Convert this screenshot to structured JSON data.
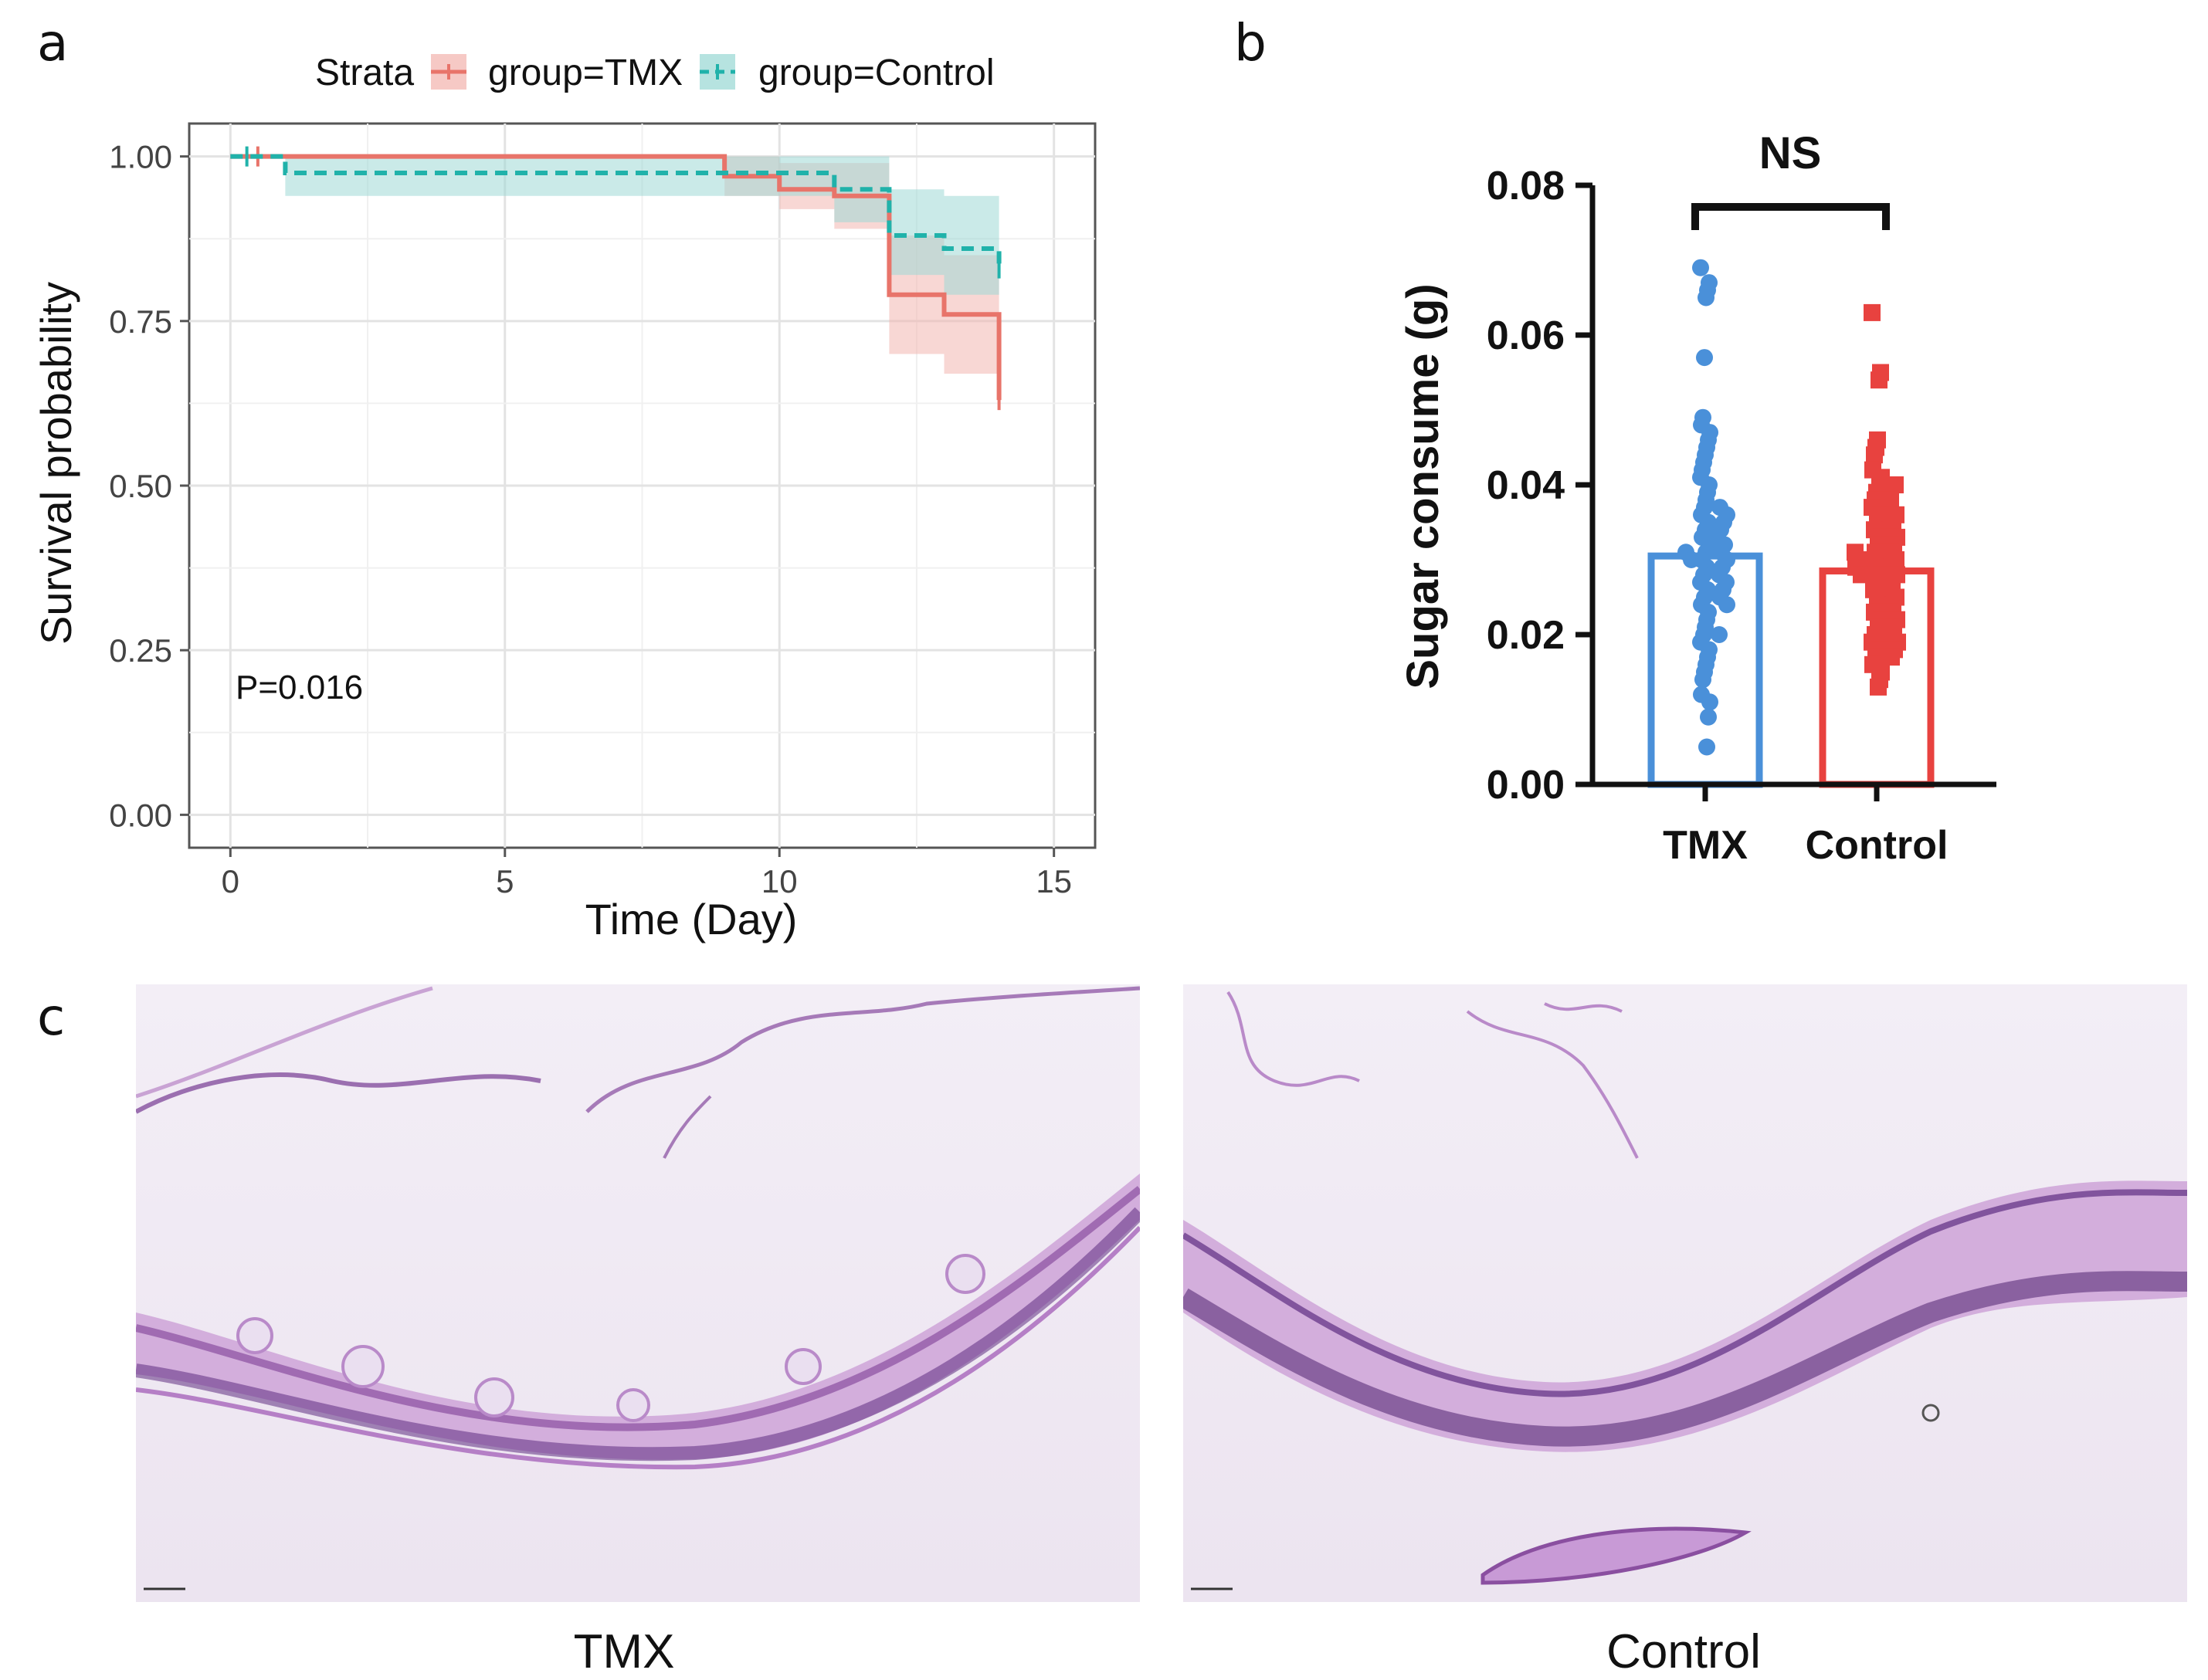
{
  "panels": {
    "a": "a",
    "b": "b",
    "c": "c"
  },
  "colors": {
    "tmx": "#e8746a",
    "control": "#20b2aa",
    "tmx_fill": "#f3b7b1",
    "control_fill": "#9ed9d5",
    "bar_tmx": "#4a90d9",
    "bar_control": "#e8423f"
  },
  "chart_data": [
    {
      "type": "line",
      "subtype": "kaplan-meier survival",
      "xlabel": "Time (Day)",
      "ylabel": "Survival probability",
      "xlim": [
        -0.75,
        15.75
      ],
      "ylim": [
        -0.05,
        1.05
      ],
      "xticks": [
        "0",
        "5",
        "10",
        "15"
      ],
      "yticks": [
        "0.00",
        "0.25",
        "0.50",
        "0.75",
        "1.00"
      ],
      "legend": {
        "title": "Strata",
        "entries": [
          "group=TMX",
          "group=Control"
        ],
        "position": "top"
      },
      "annotation": "P=0.016",
      "series": [
        {
          "name": "group=TMX",
          "x": [
            0,
            9,
            10,
            11,
            12,
            13,
            14
          ],
          "y": [
            1.0,
            0.97,
            0.95,
            0.94,
            0.79,
            0.76,
            0.63
          ],
          "ci_lower": [
            1.0,
            0.94,
            0.92,
            0.89,
            0.7,
            0.67,
            0.63
          ],
          "ci_upper": [
            1.0,
            1.0,
            0.99,
            0.99,
            0.88,
            0.85,
            0.63
          ],
          "censor_x": [
            0.5,
            14
          ]
        },
        {
          "name": "group=Control",
          "x": [
            0,
            1,
            9,
            11,
            12,
            13,
            14
          ],
          "y": [
            1.0,
            0.975,
            0.975,
            0.95,
            0.88,
            0.86,
            0.83
          ],
          "ci_lower": [
            1.0,
            0.94,
            0.94,
            0.9,
            0.82,
            0.79,
            0.79
          ],
          "ci_upper": [
            1.0,
            1.0,
            1.0,
            1.0,
            0.95,
            0.94,
            0.94
          ],
          "censor_x": [
            0.3,
            14
          ]
        }
      ]
    },
    {
      "type": "bar",
      "subtype": "bar with scatter",
      "ylabel": "Sugar consume (g)",
      "categories": [
        "TMX",
        "Control"
      ],
      "values": [
        0.0305,
        0.0285
      ],
      "ylim": [
        0,
        0.08
      ],
      "yticks": [
        "0.00",
        "0.02",
        "0.04",
        "0.06",
        "0.08"
      ],
      "significance": "NS",
      "points": {
        "TMX": [
          0.069,
          0.067,
          0.066,
          0.065,
          0.057,
          0.049,
          0.048,
          0.047,
          0.046,
          0.045,
          0.044,
          0.043,
          0.042,
          0.041,
          0.04,
          0.039,
          0.038,
          0.037,
          0.037,
          0.036,
          0.036,
          0.035,
          0.035,
          0.034,
          0.034,
          0.033,
          0.033,
          0.032,
          0.032,
          0.031,
          0.031,
          0.031,
          0.03,
          0.03,
          0.03,
          0.029,
          0.029,
          0.028,
          0.028,
          0.027,
          0.027,
          0.026,
          0.026,
          0.025,
          0.025,
          0.024,
          0.024,
          0.023,
          0.022,
          0.021,
          0.02,
          0.02,
          0.019,
          0.018,
          0.017,
          0.016,
          0.015,
          0.014,
          0.012,
          0.011,
          0.009,
          0.005
        ],
        "Control": [
          0.063,
          0.055,
          0.054,
          0.046,
          0.045,
          0.044,
          0.042,
          0.041,
          0.04,
          0.04,
          0.039,
          0.038,
          0.038,
          0.037,
          0.036,
          0.036,
          0.035,
          0.035,
          0.034,
          0.034,
          0.033,
          0.033,
          0.032,
          0.032,
          0.031,
          0.031,
          0.031,
          0.03,
          0.03,
          0.03,
          0.029,
          0.029,
          0.029,
          0.028,
          0.028,
          0.028,
          0.027,
          0.027,
          0.026,
          0.026,
          0.025,
          0.025,
          0.024,
          0.024,
          0.023,
          0.023,
          0.022,
          0.022,
          0.021,
          0.021,
          0.02,
          0.02,
          0.019,
          0.019,
          0.018,
          0.018,
          0.017,
          0.017,
          0.016,
          0.015,
          0.014,
          0.013
        ]
      }
    }
  ],
  "micrographs": {
    "left_caption": "TMX",
    "right_caption": "Control"
  }
}
